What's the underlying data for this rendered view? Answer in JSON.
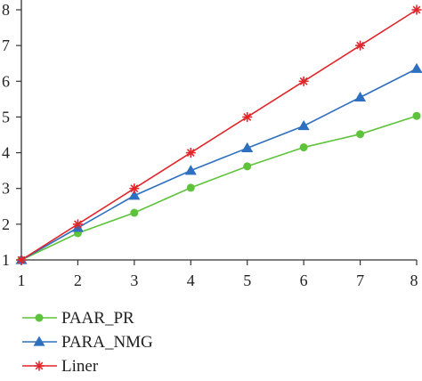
{
  "chart_data": {
    "type": "line",
    "x": [
      1,
      2,
      3,
      4,
      5,
      6,
      7,
      8
    ],
    "xlim": [
      1,
      8
    ],
    "ylim": [
      1,
      8
    ],
    "xticks": [
      1,
      2,
      3,
      4,
      5,
      6,
      7,
      8
    ],
    "yticks": [
      1,
      2,
      3,
      4,
      5,
      6,
      7,
      8
    ],
    "grid": false,
    "legend_position": "bottom-left",
    "series": [
      {
        "name": "PAAR_PR",
        "color": "#5dc33a",
        "marker": "circle",
        "values": [
          1.0,
          1.75,
          2.32,
          3.02,
          3.62,
          4.15,
          4.52,
          5.03
        ]
      },
      {
        "name": "PARA_NMG",
        "color": "#2f6fbf",
        "marker": "triangle",
        "values": [
          1.0,
          1.9,
          2.8,
          3.5,
          4.13,
          4.75,
          5.55,
          6.35
        ]
      },
      {
        "name": "Liner",
        "color": "#e0262a",
        "marker": "star",
        "values": [
          1,
          2,
          3,
          4,
          5,
          6,
          7,
          8
        ]
      }
    ]
  }
}
